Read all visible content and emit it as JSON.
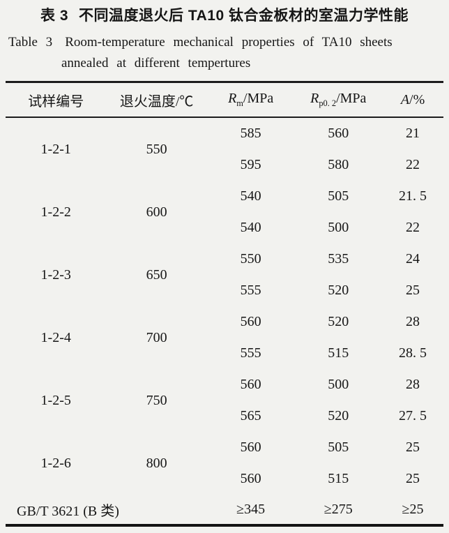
{
  "page": {
    "bg_color": "#f2f2ef",
    "ink_color": "#161616"
  },
  "title_zh": {
    "label": "表 3",
    "text": "不同温度退火后 TA10 钛合金板材的室温力学性能"
  },
  "caption_en": {
    "label": "Table 3",
    "line1": "Room-temperature mechanical properties of TA10 sheets",
    "line2": "annealed at different tempertures"
  },
  "table": {
    "headers": {
      "sample": "试样编号",
      "temp": "退火温度/℃",
      "rm": {
        "sym": "R",
        "sub": "m",
        "unit": "/MPa"
      },
      "rp": {
        "sym": "R",
        "sub": "p0. 2",
        "unit": "/MPa"
      },
      "a": {
        "sym": "A",
        "unit": "/%"
      }
    },
    "groups": [
      {
        "sample": "1-2-1",
        "temp": "550",
        "rows": [
          [
            "585",
            "560",
            "21"
          ],
          [
            "595",
            "580",
            "22"
          ]
        ]
      },
      {
        "sample": "1-2-2",
        "temp": "600",
        "rows": [
          [
            "540",
            "505",
            "21. 5"
          ],
          [
            "540",
            "500",
            "22"
          ]
        ]
      },
      {
        "sample": "1-2-3",
        "temp": "650",
        "rows": [
          [
            "550",
            "535",
            "24"
          ],
          [
            "555",
            "520",
            "25"
          ]
        ]
      },
      {
        "sample": "1-2-4",
        "temp": "700",
        "rows": [
          [
            "560",
            "520",
            "28"
          ],
          [
            "555",
            "515",
            "28. 5"
          ]
        ]
      },
      {
        "sample": "1-2-5",
        "temp": "750",
        "rows": [
          [
            "560",
            "500",
            "28"
          ],
          [
            "565",
            "520",
            "27. 5"
          ]
        ]
      },
      {
        "sample": "1-2-6",
        "temp": "800",
        "rows": [
          [
            "560",
            "505",
            "25"
          ],
          [
            "560",
            "515",
            "25"
          ]
        ]
      }
    ],
    "footer": {
      "label": "GB/T 3621 (B 类)",
      "rm": "≥345",
      "rp": "≥275",
      "a": "≥25"
    }
  }
}
